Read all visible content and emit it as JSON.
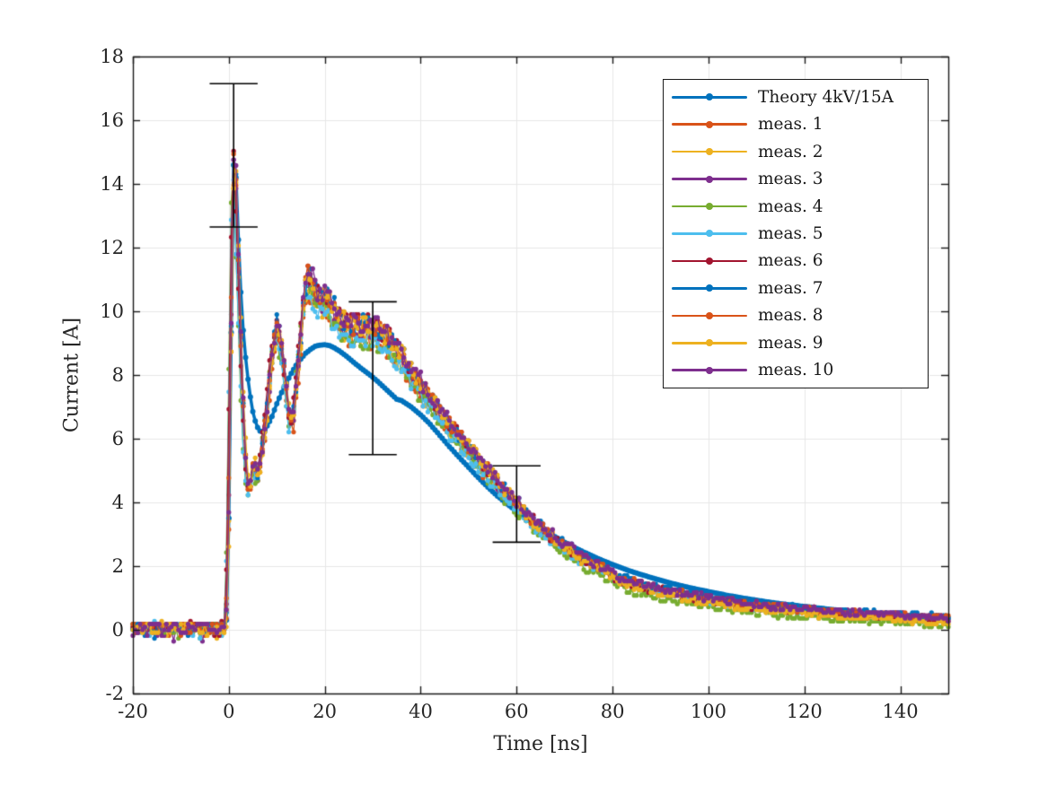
{
  "chart_data": {
    "type": "line",
    "title": "",
    "xlabel": "Time [ns]",
    "ylabel": "Current [A]",
    "xlim": [
      -20,
      150
    ],
    "ylim": [
      -2,
      18
    ],
    "xticks": [
      -20,
      0,
      20,
      40,
      60,
      80,
      100,
      120,
      140
    ],
    "yticks": [
      -2,
      0,
      2,
      4,
      6,
      8,
      10,
      12,
      14,
      16,
      18
    ],
    "grid": true,
    "box": true,
    "tick_dir": "in",
    "colors": {
      "axis": "#1a1a1a",
      "grid": "#e8e8e8",
      "tick_label": "#262626",
      "background": "#ffffff",
      "errorbar": "#000000"
    },
    "legend": {
      "position": "northeast",
      "border_color": "#1a1a1a"
    },
    "series": [
      {
        "label": "Theory 4kV/15A",
        "color": "#0072BD",
        "role": "theory",
        "line_width": 3.5,
        "marker_size": 3.0,
        "sample_step_ns": 0.5
      },
      {
        "label": "meas. 1",
        "color": "#D95319",
        "role": "measurement",
        "seed": 3,
        "tail_offset": 0.03
      },
      {
        "label": "meas. 2",
        "color": "#EDB120",
        "role": "measurement",
        "seed": 17,
        "tail_offset": -0.02
      },
      {
        "label": "meas. 3",
        "color": "#7E2F8E",
        "role": "measurement",
        "seed": 42,
        "tail_offset": 0.02
      },
      {
        "label": "meas. 4",
        "color": "#77AC30",
        "role": "measurement",
        "seed": 7,
        "tail_offset": -0.2
      },
      {
        "label": "meas. 5",
        "color": "#4DBEEE",
        "role": "measurement",
        "seed": 23,
        "tail_offset": 0.0
      },
      {
        "label": "meas. 6",
        "color": "#A2142F",
        "role": "measurement",
        "seed": 99,
        "tail_offset": -0.05
      },
      {
        "label": "meas. 7",
        "color": "#0072BD",
        "role": "measurement",
        "seed": 5,
        "tail_offset": 0.04
      },
      {
        "label": "meas. 8",
        "color": "#D95319",
        "role": "measurement",
        "seed": 61,
        "tail_offset": 0.0
      },
      {
        "label": "meas. 9",
        "color": "#EDB120",
        "role": "measurement",
        "seed": 88,
        "tail_offset": -0.12
      },
      {
        "label": "meas. 10",
        "color": "#7E2F8E",
        "role": "measurement",
        "seed": 31,
        "tail_offset": 0.02
      }
    ],
    "theory_keypoints": [
      [
        -20,
        0.02
      ],
      [
        -5,
        0.02
      ],
      [
        -1,
        0.02
      ],
      [
        -0.5,
        0.3
      ],
      [
        0,
        3.5
      ],
      [
        0.4,
        8.0
      ],
      [
        0.7,
        12.0
      ],
      [
        1.0,
        14.6
      ],
      [
        1.2,
        15.0
      ],
      [
        1.45,
        14.4
      ],
      [
        1.8,
        13.0
      ],
      [
        2.2,
        11.5
      ],
      [
        2.7,
        10.0
      ],
      [
        3.2,
        9.0
      ],
      [
        3.8,
        8.1
      ],
      [
        4.4,
        7.4
      ],
      [
        5.0,
        6.85
      ],
      [
        5.6,
        6.5
      ],
      [
        6.2,
        6.28
      ],
      [
        6.8,
        6.2
      ],
      [
        7.4,
        6.25
      ],
      [
        8.2,
        6.45
      ],
      [
        9.0,
        6.7
      ],
      [
        10,
        7.1
      ],
      [
        11,
        7.45
      ],
      [
        12,
        7.75
      ],
      [
        13,
        8.05
      ],
      [
        14,
        8.3
      ],
      [
        15,
        8.5
      ],
      [
        16,
        8.68
      ],
      [
        17,
        8.8
      ],
      [
        18,
        8.9
      ],
      [
        19,
        8.94
      ],
      [
        20,
        8.95
      ],
      [
        21,
        8.92
      ],
      [
        22,
        8.85
      ],
      [
        23,
        8.76
      ],
      [
        24,
        8.65
      ],
      [
        25,
        8.53
      ],
      [
        26,
        8.4
      ],
      [
        27,
        8.28
      ],
      [
        28,
        8.16
      ],
      [
        29,
        8.05
      ],
      [
        30,
        7.93
      ],
      [
        31,
        7.8
      ],
      [
        32,
        7.66
      ],
      [
        33,
        7.52
      ],
      [
        34,
        7.38
      ],
      [
        35,
        7.24
      ],
      [
        36,
        7.2
      ],
      [
        38,
        7.0
      ],
      [
        40,
        6.75
      ],
      [
        42,
        6.45
      ],
      [
        44,
        6.1
      ],
      [
        46,
        5.75
      ],
      [
        48,
        5.42
      ],
      [
        50,
        5.1
      ],
      [
        52,
        4.78
      ],
      [
        54,
        4.48
      ],
      [
        56,
        4.2
      ],
      [
        58,
        3.95
      ],
      [
        60,
        3.72
      ],
      [
        62,
        3.5
      ],
      [
        64,
        3.3
      ],
      [
        66,
        3.1
      ],
      [
        68,
        2.92
      ],
      [
        70,
        2.75
      ],
      [
        72,
        2.59
      ],
      [
        74,
        2.44
      ],
      [
        76,
        2.3
      ],
      [
        78,
        2.17
      ],
      [
        80,
        2.05
      ],
      [
        83,
        1.88
      ],
      [
        86,
        1.73
      ],
      [
        89,
        1.6
      ],
      [
        92,
        1.47
      ],
      [
        95,
        1.36
      ],
      [
        98,
        1.26
      ],
      [
        101,
        1.17
      ],
      [
        104,
        1.08
      ],
      [
        107,
        1.0
      ],
      [
        110,
        0.93
      ],
      [
        113,
        0.86
      ],
      [
        116,
        0.8
      ],
      [
        119,
        0.75
      ],
      [
        122,
        0.7
      ],
      [
        125,
        0.65
      ],
      [
        128,
        0.6
      ],
      [
        131,
        0.56
      ],
      [
        134,
        0.52
      ],
      [
        137,
        0.49
      ],
      [
        140,
        0.46
      ],
      [
        143,
        0.43
      ],
      [
        146,
        0.4
      ],
      [
        149,
        0.38
      ],
      [
        150,
        0.37
      ]
    ],
    "measurement_keypoints": [
      [
        -20,
        0.07
      ],
      [
        -1.2,
        0.07
      ],
      [
        -0.7,
        0.15
      ],
      [
        -0.2,
        2.5
      ],
      [
        0.3,
        8.5
      ],
      [
        0.7,
        13.0
      ],
      [
        1.05,
        15.35
      ],
      [
        1.4,
        14.3
      ],
      [
        1.8,
        12.0
      ],
      [
        2.3,
        9.6
      ],
      [
        2.8,
        7.4
      ],
      [
        3.4,
        5.4
      ],
      [
        3.9,
        4.5
      ],
      [
        4.3,
        4.35
      ],
      [
        4.8,
        4.95
      ],
      [
        5.3,
        5.15
      ],
      [
        5.9,
        4.85
      ],
      [
        6.5,
        5.15
      ],
      [
        7.2,
        5.95
      ],
      [
        8,
        7.0
      ],
      [
        9,
        8.65
      ],
      [
        9.8,
        9.45
      ],
      [
        10.5,
        9.25
      ],
      [
        11.2,
        8.55
      ],
      [
        12,
        7.5
      ],
      [
        12.7,
        6.55
      ],
      [
        13.3,
        6.55
      ],
      [
        14.1,
        7.8
      ],
      [
        15,
        9.3
      ],
      [
        15.8,
        10.55
      ],
      [
        16.6,
        11.05
      ],
      [
        17.4,
        10.8
      ],
      [
        18.2,
        10.5
      ],
      [
        19.2,
        10.28
      ],
      [
        20.2,
        10.42
      ],
      [
        21.2,
        10.12
      ],
      [
        22.2,
        9.88
      ],
      [
        23.5,
        9.62
      ],
      [
        25,
        9.45
      ],
      [
        27,
        9.4
      ],
      [
        29,
        9.44
      ],
      [
        31,
        9.28
      ],
      [
        33,
        9.08
      ],
      [
        35,
        8.72
      ],
      [
        37,
        8.28
      ],
      [
        39,
        7.84
      ],
      [
        41,
        7.4
      ],
      [
        43,
        7.0
      ],
      [
        45,
        6.6
      ],
      [
        47,
        6.22
      ],
      [
        49,
        5.85
      ],
      [
        51,
        5.5
      ],
      [
        53,
        5.12
      ],
      [
        55,
        4.78
      ],
      [
        57,
        4.42
      ],
      [
        59,
        4.08
      ],
      [
        61,
        3.76
      ],
      [
        63,
        3.45
      ],
      [
        65,
        3.18
      ],
      [
        67,
        2.95
      ],
      [
        69,
        2.72
      ],
      [
        71,
        2.52
      ],
      [
        73,
        2.32
      ],
      [
        75,
        2.14
      ],
      [
        77,
        1.98
      ],
      [
        79,
        1.84
      ],
      [
        81,
        1.62
      ],
      [
        84,
        1.48
      ],
      [
        87,
        1.36
      ],
      [
        90,
        1.25
      ],
      [
        93,
        1.15
      ],
      [
        96,
        1.07
      ],
      [
        100,
        0.96
      ],
      [
        104,
        0.88
      ],
      [
        108,
        0.8
      ],
      [
        112,
        0.73
      ],
      [
        116,
        0.67
      ],
      [
        120,
        0.62
      ],
      [
        124,
        0.57
      ],
      [
        128,
        0.53
      ],
      [
        132,
        0.49
      ],
      [
        136,
        0.46
      ],
      [
        140,
        0.43
      ],
      [
        144,
        0.4
      ],
      [
        148,
        0.37
      ],
      [
        150,
        0.36
      ]
    ],
    "measurement_noise": {
      "sample_step_ns": 0.5,
      "baseline_level": 0.07,
      "baseline_amp": 0.32,
      "spike_down_prob": 0.06,
      "spike_down_amp": 0.3,
      "abs_amp": 0.08,
      "rel_amp": 0.022,
      "amp_scale_spread": 0.07,
      "time_jitter_ns": 0.6,
      "quantize_step": 0.09,
      "line_width": 1.3,
      "marker_size": 2.6
    },
    "errorbars": {
      "color": "#000000",
      "line_width": 1.6,
      "cap_halfwidth_ns": 5,
      "points": [
        {
          "t": 1,
          "y": 14.9,
          "err": 2.25
        },
        {
          "t": 30,
          "y": 7.9,
          "err": 2.4
        },
        {
          "t": 60,
          "y": 3.95,
          "err": 1.2
        }
      ]
    }
  }
}
